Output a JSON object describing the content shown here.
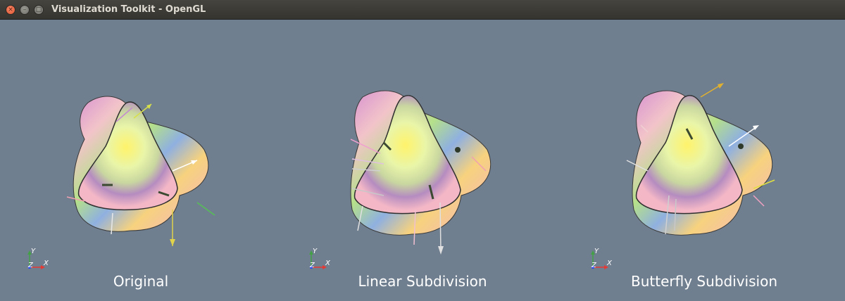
{
  "window": {
    "title": "Visualization Toolkit - OpenGL",
    "buttons": {
      "close": "×",
      "minimize": "–",
      "maximize": "□"
    }
  },
  "viewports": [
    {
      "label": "Original"
    },
    {
      "label": "Linear Subdivision"
    },
    {
      "label": "Butterfly Subdivision"
    }
  ],
  "axes": {
    "x": "X",
    "y": "Y",
    "z": "Z"
  },
  "colors": {
    "background": "#707f8f",
    "surface_center": "#fff176",
    "surface_edge": "#f4b8c8",
    "axis_x": "#e53935",
    "axis_y": "#43a047",
    "axis_z": "#1e40ff"
  }
}
